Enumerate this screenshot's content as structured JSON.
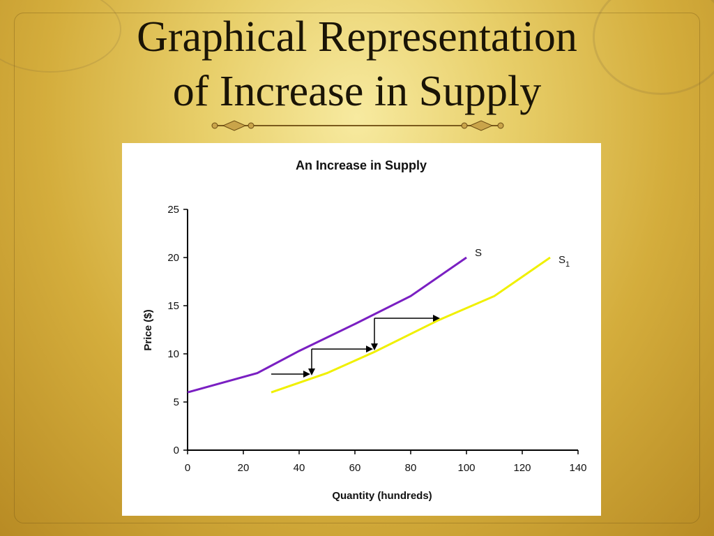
{
  "slide": {
    "title_line1": "Graphical Representation",
    "title_line2": "of Increase in Supply"
  },
  "chart_data": {
    "type": "line",
    "title": "An Increase in Supply",
    "xlabel": "Quantity (hundreds)",
    "ylabel": "Price ($)",
    "xlim": [
      0,
      140
    ],
    "ylim": [
      0,
      25
    ],
    "xticks": [
      0,
      20,
      40,
      60,
      80,
      100,
      120,
      140
    ],
    "yticks": [
      0,
      5,
      10,
      15,
      20,
      25
    ],
    "grid": false,
    "series": [
      {
        "name": "S",
        "color": "#7a1fc2",
        "points": [
          [
            0,
            6
          ],
          [
            25,
            8
          ],
          [
            40,
            10.3
          ],
          [
            60,
            13.1
          ],
          [
            80,
            16
          ],
          [
            90,
            18
          ],
          [
            100,
            20
          ]
        ]
      },
      {
        "name": "S1",
        "label_main": "S",
        "label_sub": "1",
        "color": "#f0f000",
        "points": [
          [
            30,
            6
          ],
          [
            50,
            8
          ],
          [
            67,
            10.2
          ],
          [
            90,
            13.5
          ],
          [
            110,
            16
          ],
          [
            120,
            18
          ],
          [
            130,
            20
          ]
        ]
      }
    ],
    "arrows": [
      {
        "path": [
          [
            30,
            7.9
          ],
          [
            43.5,
            7.9
          ]
        ],
        "head": "right"
      },
      {
        "path": [
          [
            67,
            13.7
          ],
          [
            90,
            13.7
          ]
        ],
        "head": "right"
      },
      {
        "path": [
          [
            67,
            13.7
          ],
          [
            67,
            10.5
          ]
        ],
        "head": "down"
      },
      {
        "path": [
          [
            44.5,
            10.5
          ],
          [
            66,
            10.5
          ]
        ],
        "head": "right"
      },
      {
        "path": [
          [
            44.5,
            10.5
          ],
          [
            44.5,
            7.9
          ]
        ],
        "head": "down"
      }
    ]
  }
}
